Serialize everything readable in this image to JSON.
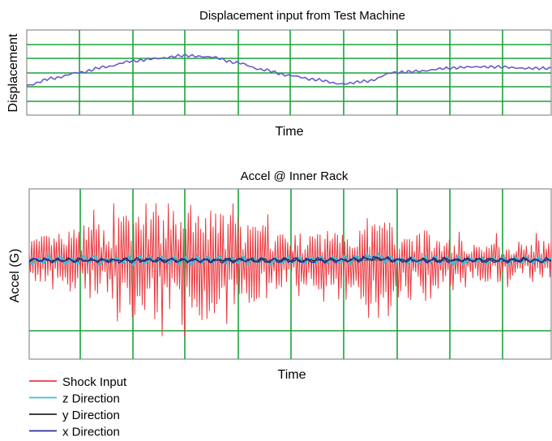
{
  "chart_data": [
    {
      "type": "line",
      "title": "Displacement input from Test Machine",
      "xlabel": "Time",
      "ylabel": "Displacement",
      "grid": true,
      "gridColor": "#1aa33a",
      "xlim": [
        0,
        10
      ],
      "ylim": [
        0,
        6
      ],
      "series": [
        {
          "color": "#6a5cc8",
          "x": [
            0,
            0.5,
            1.0,
            1.5,
            2.0,
            2.5,
            3.0,
            3.5,
            4.0,
            4.5,
            5.0,
            5.5,
            6.0,
            6.5,
            7.0,
            7.5,
            8.0,
            8.5,
            9.0,
            9.5,
            10.0
          ],
          "y": [
            2.1,
            2.6,
            3.0,
            3.4,
            3.8,
            4.0,
            4.2,
            4.1,
            3.7,
            3.2,
            2.8,
            2.5,
            2.2,
            2.4,
            3.0,
            3.1,
            3.3,
            3.4,
            3.4,
            3.3,
            3.3
          ]
        }
      ]
    },
    {
      "type": "line",
      "title": "Accel @ Inner Rack",
      "xlabel": "Time",
      "ylabel": "Accel (G)",
      "grid": true,
      "gridColor": "#1aa33a",
      "xlim": [
        0,
        10
      ],
      "ylim": [
        -1.5,
        1.0
      ],
      "legend_position": "bottom-left",
      "series": [
        {
          "name": "Shock Input",
          "color": "#e8393f"
        },
        {
          "name": "z Direction",
          "color": "#36c0d8"
        },
        {
          "name": "y Direction",
          "color": "#222222"
        },
        {
          "name": "x Direction",
          "color": "#2b2f9a"
        }
      ]
    }
  ]
}
